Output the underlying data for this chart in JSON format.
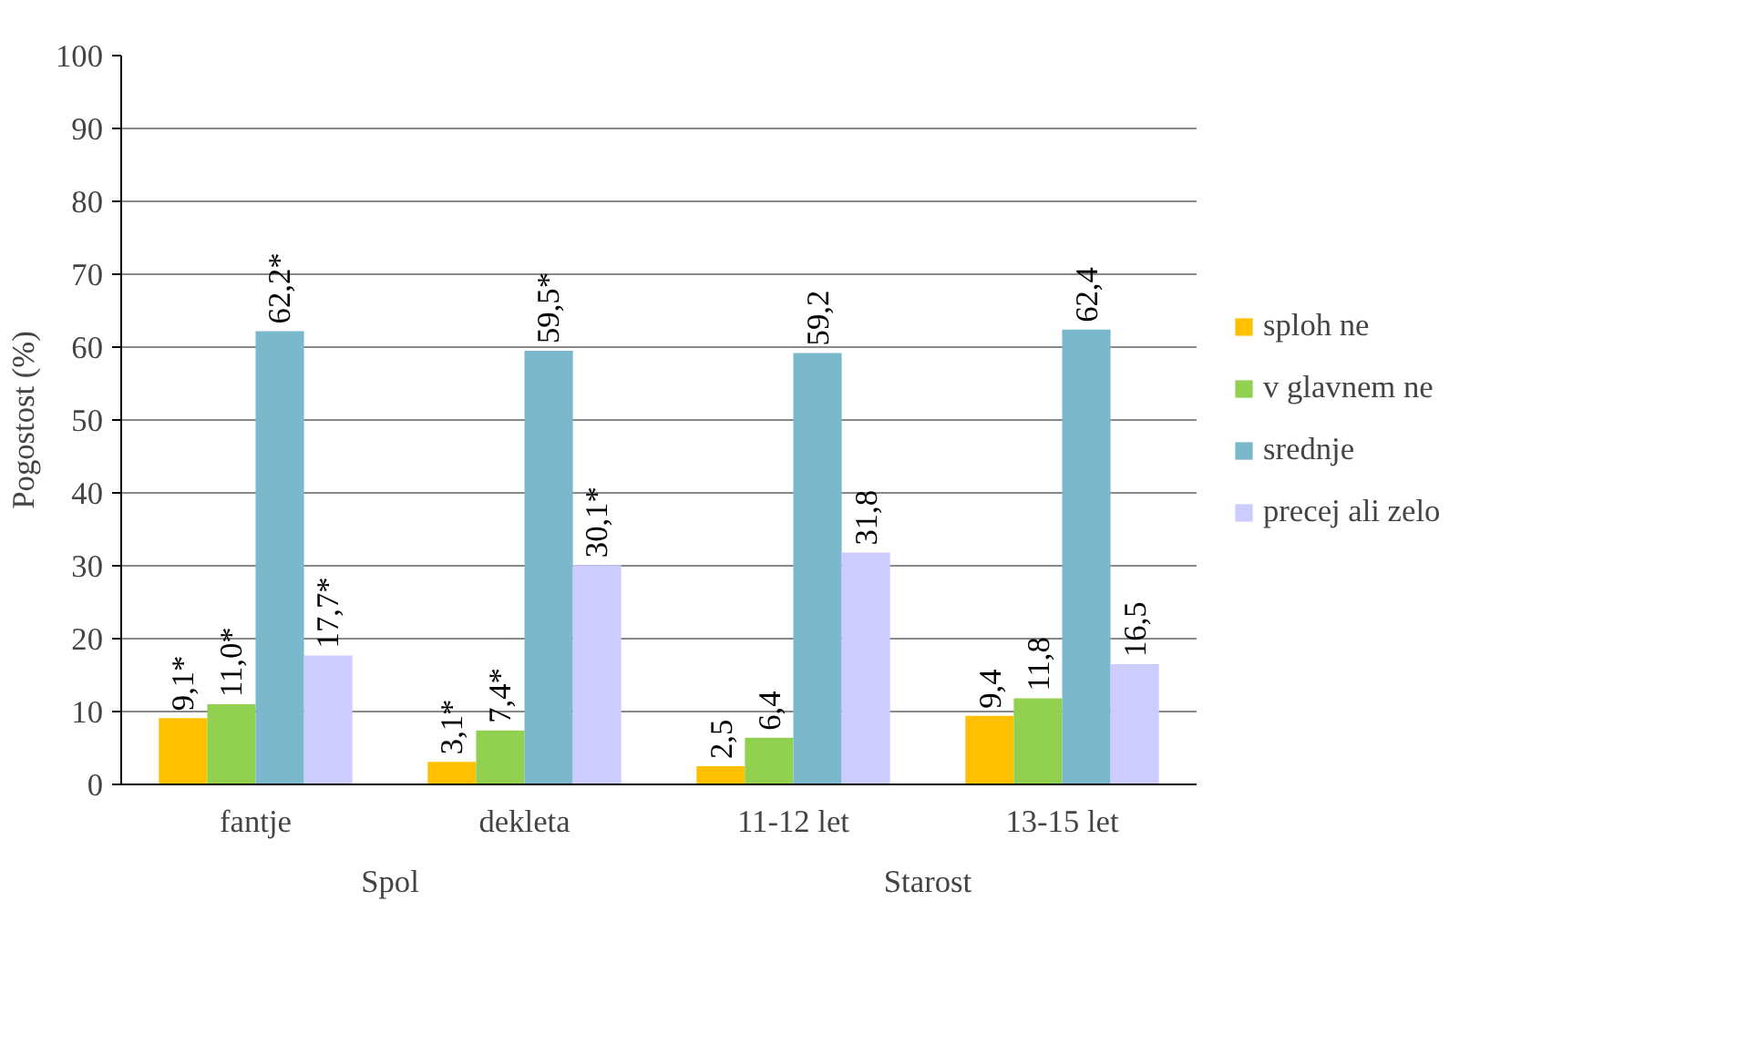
{
  "chart_data": {
    "type": "bar",
    "ylabel": "Pogostost (%)",
    "categories": [
      "fantje",
      "dekleta",
      "11-12 let",
      "13-15 let"
    ],
    "series": [
      {
        "name": "sploh ne",
        "color": "#ffc000",
        "values": [
          9.1,
          3.1,
          2.5,
          9.4
        ],
        "value_labels": [
          "9,1*",
          "3,1*",
          "2,5",
          "9,4"
        ]
      },
      {
        "name": "v glavnem ne",
        "color": "#92d050",
        "values": [
          11.0,
          7.4,
          6.4,
          11.8
        ],
        "value_labels": [
          "11,0*",
          "7,4*",
          "6,4",
          "11,8"
        ]
      },
      {
        "name": "srednje",
        "color": "#7bb8cc",
        "values": [
          62.2,
          59.5,
          59.2,
          62.4
        ],
        "value_labels": [
          "62,2*",
          "59,5*",
          "59,2",
          "62,4"
        ]
      },
      {
        "name": "precej ali zelo",
        "color": "#ccccff",
        "values": [
          17.7,
          30.1,
          31.8,
          16.5
        ],
        "value_labels": [
          "17,7*",
          "30,1*",
          "31,8",
          "16,5"
        ]
      }
    ],
    "annotations": [
      "Spol",
      "Starost"
    ],
    "ylim": [
      0,
      100
    ],
    "yticks": [
      0,
      10,
      20,
      30,
      40,
      50,
      60,
      70,
      80,
      90,
      100
    ],
    "grid": "y",
    "legend": "right"
  }
}
